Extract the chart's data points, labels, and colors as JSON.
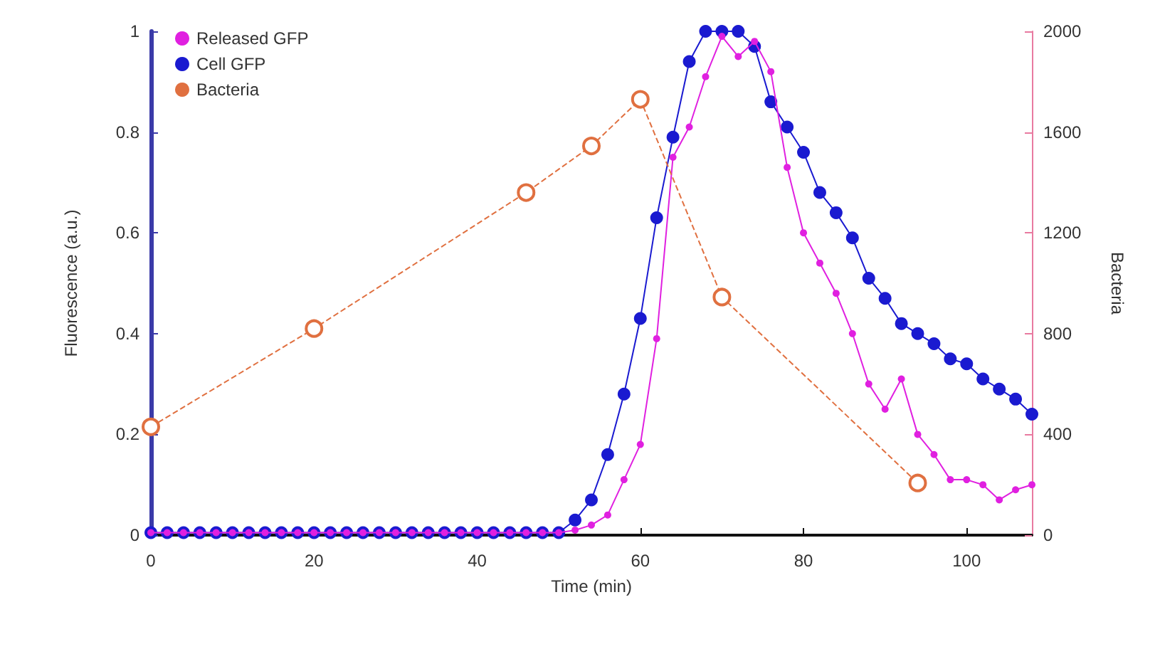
{
  "chart_data": {
    "type": "line",
    "xlabel": "Time (min)",
    "ylabel": "Fluorescence (a.u.)",
    "y2label": "Bacteria",
    "xlim": [
      0,
      108
    ],
    "xticks": [
      0,
      20,
      40,
      60,
      80,
      100
    ],
    "ylim": [
      0,
      1
    ],
    "yticks": [
      0,
      0.2,
      0.4,
      0.6,
      0.8,
      1
    ],
    "y2lim": [
      0,
      2000
    ],
    "y2ticks": [
      0,
      400,
      800,
      1200,
      1600,
      2000
    ],
    "legend": "top left",
    "marker": "circle",
    "grid": false,
    "series": [
      {
        "name": "Released GFP",
        "color": "#e020e0",
        "x": [
          0,
          2,
          4,
          6,
          8,
          10,
          12,
          14,
          16,
          18,
          20,
          22,
          24,
          26,
          28,
          30,
          32,
          34,
          36,
          38,
          40,
          42,
          44,
          46,
          48,
          50,
          52,
          54,
          56,
          58,
          60,
          62,
          64,
          66,
          68,
          70,
          72,
          74,
          76,
          78,
          80,
          82,
          84,
          86,
          88,
          90,
          92,
          94,
          96,
          98,
          100,
          102,
          104,
          106,
          108
        ],
        "values": [
          0.005,
          0.005,
          0.005,
          0.005,
          0.005,
          0.005,
          0.005,
          0.005,
          0.005,
          0.005,
          0.005,
          0.005,
          0.005,
          0.005,
          0.005,
          0.005,
          0.005,
          0.005,
          0.005,
          0.005,
          0.005,
          0.005,
          0.005,
          0.005,
          0.005,
          0.005,
          0.01,
          0.02,
          0.04,
          0.11,
          0.18,
          0.39,
          0.75,
          0.81,
          0.91,
          0.99,
          0.95,
          0.98,
          0.92,
          0.73,
          0.6,
          0.54,
          0.48,
          0.4,
          0.3,
          0.25,
          0.31,
          0.2,
          0.16,
          0.11,
          0.11,
          0.1,
          0.07,
          0.09,
          0.1
        ]
      },
      {
        "name": "Cell GFP",
        "color": "#1a1ad0",
        "x": [
          0,
          2,
          4,
          6,
          8,
          10,
          12,
          14,
          16,
          18,
          20,
          22,
          24,
          26,
          28,
          30,
          32,
          34,
          36,
          38,
          40,
          42,
          44,
          46,
          48,
          50,
          52,
          54,
          56,
          58,
          60,
          62,
          64,
          66,
          68,
          70,
          72,
          74,
          76,
          78,
          80,
          82,
          84,
          86,
          88,
          90,
          92,
          94,
          96,
          98,
          100,
          102,
          104,
          106,
          108
        ],
        "values": [
          0.005,
          0.005,
          0.005,
          0.005,
          0.005,
          0.005,
          0.005,
          0.005,
          0.005,
          0.005,
          0.005,
          0.005,
          0.005,
          0.005,
          0.005,
          0.005,
          0.005,
          0.005,
          0.005,
          0.005,
          0.005,
          0.005,
          0.005,
          0.005,
          0.005,
          0.005,
          0.03,
          0.07,
          0.16,
          0.28,
          0.43,
          0.63,
          0.79,
          0.94,
          1,
          1,
          1,
          0.97,
          0.86,
          0.81,
          0.76,
          0.68,
          0.64,
          0.59,
          0.51,
          0.47,
          0.42,
          0.4,
          0.38,
          0.35,
          0.34,
          0.31,
          0.29,
          0.27,
          0.24
        ]
      },
      {
        "name": "Bacteria",
        "color": "#e07040",
        "axis": "y2",
        "line_style": "dashed",
        "x": [
          0,
          20,
          46,
          54,
          60,
          70,
          94
        ],
        "values": [
          430,
          820,
          1360,
          1545,
          1730,
          945,
          207
        ]
      }
    ]
  }
}
